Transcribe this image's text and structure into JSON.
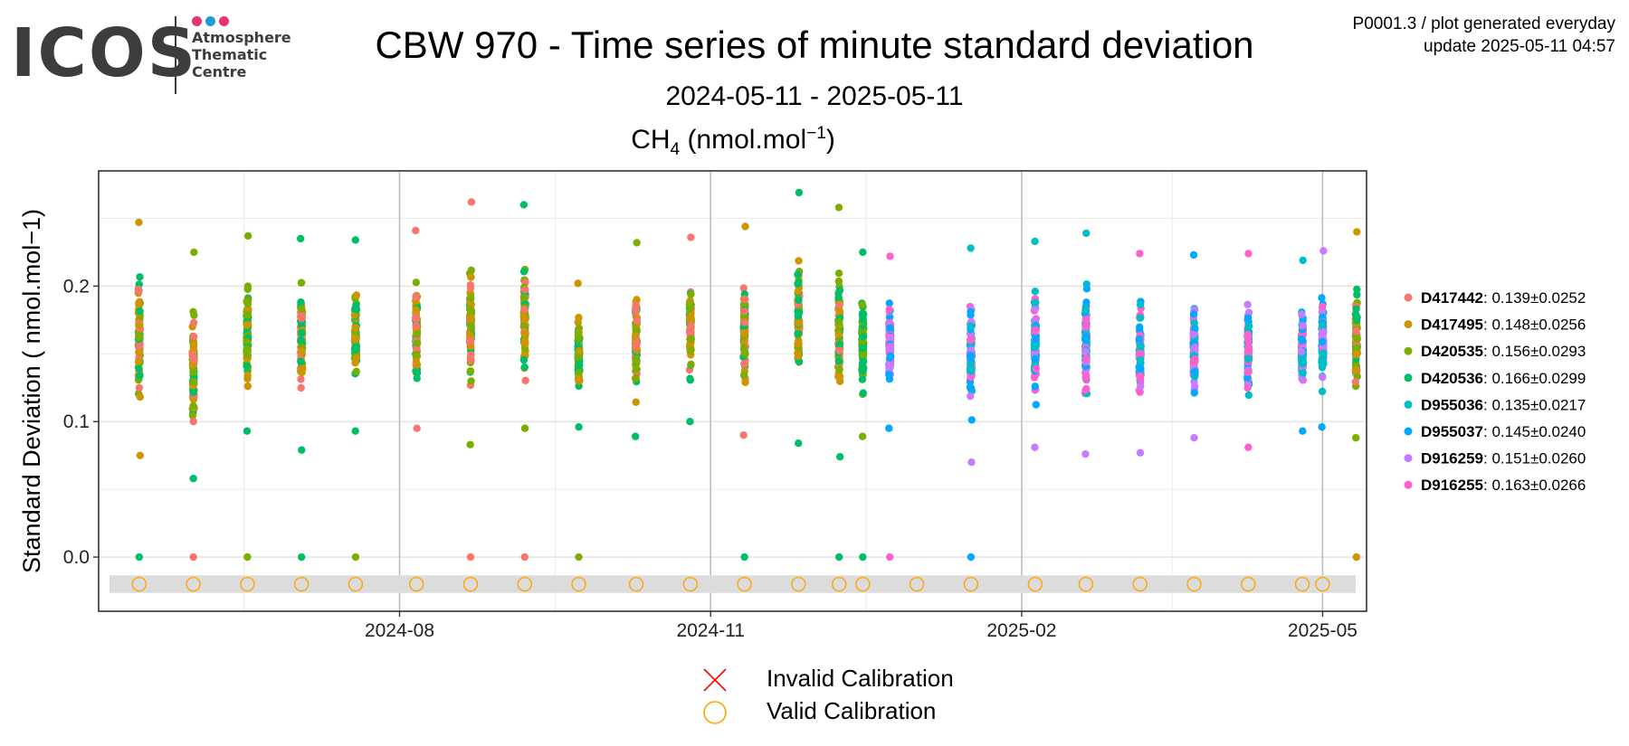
{
  "logo": {
    "word": "ICOS",
    "line1": "Atmosphere",
    "line2": "Thematic",
    "line3": "Centre",
    "dot_colors": [
      "#e8336d",
      "#1e9bd7",
      "#e8336d"
    ]
  },
  "header": {
    "title": "CBW 970 - Time series of minute standard deviation",
    "subtitle": "2024-05-11 - 2025-05-11",
    "info_line1": "P0001.3 / plot generated everyday",
    "info_line2": "update  2025-05-11 04:57"
  },
  "species": {
    "name": "CH",
    "subscript": "4",
    "unit_open": " (nmol.mol",
    "superscript": "−1",
    "unit_close": ")"
  },
  "bottom_legend": {
    "invalid_label": "Invalid Calibration",
    "valid_label": "Valid Calibration",
    "invalid_color": "#ff0000",
    "valid_color": "#ffa500"
  },
  "chart_data": {
    "type": "scatter",
    "ylabel": "Standard Deviation ( nmol.mol−1)",
    "x_ticks": [
      "2024-08",
      "2024-11",
      "2025-02",
      "2025-05"
    ],
    "x_tick_dates": [
      "2024-08-01",
      "2024-11-01",
      "2025-02-01",
      "2025-05-01"
    ],
    "xlim": [
      "2024-05-04",
      "2025-05-14"
    ],
    "y_ticks": [
      0.0,
      0.1,
      0.2
    ],
    "y_tick_labels": [
      "0.0",
      "0.1",
      "0.2"
    ],
    "ylim": [
      -0.04,
      0.285
    ],
    "grid": true,
    "legend_position": "right",
    "series": [
      {
        "name": "D417442",
        "stats": ": 0.139±0.0252",
        "color": "#f8766d",
        "mean": 0.139,
        "sd": 0.0252
      },
      {
        "name": "D417495",
        "stats": ": 0.148±0.0256",
        "color": "#cd9600",
        "mean": 0.148,
        "sd": 0.0256
      },
      {
        "name": "D420535",
        "stats": ": 0.156±0.0293",
        "color": "#7cae00",
        "mean": 0.156,
        "sd": 0.0293
      },
      {
        "name": "D420536",
        "stats": ": 0.166±0.0299",
        "color": "#00be67",
        "mean": 0.166,
        "sd": 0.0299
      },
      {
        "name": "D955036",
        "stats": ": 0.135±0.0217",
        "color": "#00bfc4",
        "mean": 0.135,
        "sd": 0.0217
      },
      {
        "name": "D955037",
        "stats": ": 0.145±0.0240",
        "color": "#00a9ff",
        "mean": 0.145,
        "sd": 0.024
      },
      {
        "name": "D916259",
        "stats": ": 0.151±0.0260",
        "color": "#c77cff",
        "mean": 0.151,
        "sd": 0.026
      },
      {
        "name": "D916255",
        "stats": ": 0.163±0.0266",
        "color": "#ff61cc",
        "mean": 0.163,
        "sd": 0.0266
      }
    ],
    "calibration_dates": [
      "2024-05-16",
      "2024-06-01",
      "2024-06-17",
      "2024-07-03",
      "2024-07-19",
      "2024-08-06",
      "2024-08-22",
      "2024-09-07",
      "2024-09-23",
      "2024-10-10",
      "2024-10-26",
      "2024-11-11",
      "2024-11-27",
      "2024-12-09",
      "2024-12-16",
      "2025-01-01",
      "2025-01-17",
      "2025-02-05",
      "2025-02-20",
      "2025-03-08",
      "2025-03-24",
      "2025-04-09",
      "2025-04-25",
      "2025-05-01"
    ],
    "calibration_status": "valid",
    "clusters": [
      {
        "date": "2024-05-16",
        "series": [
          "D420536",
          "D420535",
          "D417495",
          "D417442"
        ],
        "min": 0.075,
        "max": 0.247,
        "zero": [
          "D420536"
        ]
      },
      {
        "date": "2024-06-01",
        "series": [
          "D420536",
          "D420535",
          "D417495",
          "D417442"
        ],
        "min": 0.058,
        "max": 0.225,
        "zero": [
          "D417442"
        ]
      },
      {
        "date": "2024-06-17",
        "series": [
          "D420536",
          "D420535",
          "D417495"
        ],
        "min": 0.093,
        "max": 0.237,
        "zero": [
          "D420535"
        ]
      },
      {
        "date": "2024-07-03",
        "series": [
          "D420536",
          "D420535",
          "D417495",
          "D417442"
        ],
        "min": 0.079,
        "max": 0.235,
        "zero": [
          "D420536"
        ]
      },
      {
        "date": "2024-07-19",
        "series": [
          "D420536",
          "D420535",
          "D417495"
        ],
        "min": 0.093,
        "max": 0.234,
        "zero": [
          "D420535"
        ]
      },
      {
        "date": "2024-08-06",
        "series": [
          "D420536",
          "D420535",
          "D417495",
          "D417442"
        ],
        "min": 0.095,
        "max": 0.241,
        "zero": []
      },
      {
        "date": "2024-08-22",
        "series": [
          "D420536",
          "D420535",
          "D417495",
          "D417442"
        ],
        "min": 0.083,
        "max": 0.262,
        "zero": [
          "D417442"
        ]
      },
      {
        "date": "2024-09-07",
        "series": [
          "D420536",
          "D420535",
          "D417495",
          "D417442"
        ],
        "min": 0.095,
        "max": 0.26,
        "zero": [
          "D417442"
        ]
      },
      {
        "date": "2024-09-23",
        "series": [
          "D420536",
          "D420535",
          "D417495"
        ],
        "min": 0.096,
        "max": 0.202,
        "zero": [
          "D420535"
        ]
      },
      {
        "date": "2024-10-10",
        "series": [
          "D420536",
          "D420535",
          "D417495",
          "D417442"
        ],
        "min": 0.089,
        "max": 0.232,
        "zero": []
      },
      {
        "date": "2024-10-26",
        "series": [
          "D420536",
          "D420535",
          "D417495",
          "D417442"
        ],
        "min": 0.1,
        "max": 0.236,
        "zero": []
      },
      {
        "date": "2024-11-11",
        "series": [
          "D420536",
          "D420535",
          "D417495",
          "D417442"
        ],
        "min": 0.09,
        "max": 0.244,
        "zero": [
          "D420536"
        ]
      },
      {
        "date": "2024-11-27",
        "series": [
          "D420536",
          "D420535",
          "D417495",
          "D417442"
        ],
        "min": 0.084,
        "max": 0.269,
        "zero": []
      },
      {
        "date": "2024-12-09",
        "series": [
          "D420536",
          "D420535",
          "D417495",
          "D417442"
        ],
        "min": 0.074,
        "max": 0.258,
        "zero": [
          "D420536"
        ]
      },
      {
        "date": "2024-12-16",
        "series": [
          "D420536",
          "D420535"
        ],
        "min": 0.089,
        "max": 0.225,
        "zero": [
          "D420536"
        ]
      },
      {
        "date": "2024-12-24",
        "series": [
          "D916255",
          "D916259",
          "D955037"
        ],
        "min": 0.095,
        "max": 0.222,
        "zero": [
          "D916255"
        ]
      },
      {
        "date": "2025-01-17",
        "series": [
          "D916255",
          "D916259",
          "D955037",
          "D955036"
        ],
        "min": 0.07,
        "max": 0.228,
        "zero": [
          "D955037"
        ]
      },
      {
        "date": "2025-02-05",
        "series": [
          "D916255",
          "D916259",
          "D955037",
          "D955036"
        ],
        "min": 0.081,
        "max": 0.233,
        "zero": []
      },
      {
        "date": "2025-02-20",
        "series": [
          "D916255",
          "D916259",
          "D955037",
          "D955036"
        ],
        "min": 0.076,
        "max": 0.239,
        "zero": []
      },
      {
        "date": "2025-03-08",
        "series": [
          "D916255",
          "D916259",
          "D955037",
          "D955036"
        ],
        "min": 0.077,
        "max": 0.224,
        "zero": []
      },
      {
        "date": "2025-03-24",
        "series": [
          "D916255",
          "D916259",
          "D955037",
          "D955036"
        ],
        "min": 0.088,
        "max": 0.223,
        "zero": []
      },
      {
        "date": "2025-04-09",
        "series": [
          "D916255",
          "D916259",
          "D955037",
          "D955036"
        ],
        "min": 0.081,
        "max": 0.224,
        "zero": []
      },
      {
        "date": "2025-04-25",
        "series": [
          "D916255",
          "D916259",
          "D955037",
          "D955036"
        ],
        "min": 0.093,
        "max": 0.219,
        "zero": []
      },
      {
        "date": "2025-05-01",
        "series": [
          "D916255",
          "D916259",
          "D955037",
          "D955036"
        ],
        "min": 0.096,
        "max": 0.226,
        "zero": []
      },
      {
        "date": "2025-05-11",
        "series": [
          "D420536",
          "D420535",
          "D417495",
          "D417442"
        ],
        "min": 0.088,
        "max": 0.24,
        "zero": [
          "D417495"
        ]
      }
    ]
  }
}
